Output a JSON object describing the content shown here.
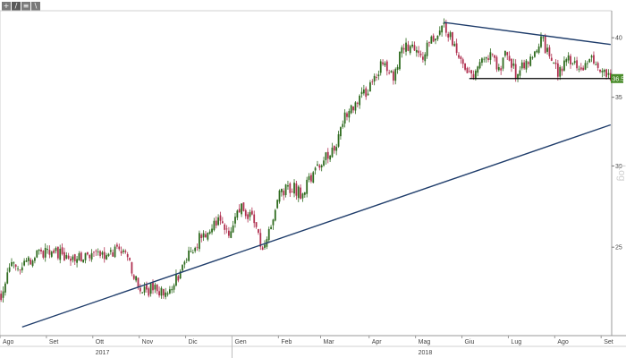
{
  "toolbar": {
    "buttons": [
      {
        "label": "+",
        "icon": "crosshair-icon"
      },
      {
        "label": "/",
        "icon": "draw-line-icon"
      },
      {
        "label": "≡",
        "icon": "layers-icon"
      },
      {
        "label": "\\",
        "icon": "trendline-icon"
      }
    ],
    "badge": "0"
  },
  "chart_data": {
    "type": "candlestick",
    "scale": "log",
    "scale_label": "Log",
    "last_price_label": "36.50",
    "yticks": [
      25,
      30,
      35,
      40
    ],
    "ylim": [
      20.5,
      42.5
    ],
    "months": [
      "Ago",
      "Set",
      "Ott",
      "Nov",
      "Dic",
      "Gen",
      "Feb",
      "Mar",
      "Apr",
      "Mag",
      "Giu",
      "Lug",
      "Ago",
      "Set"
    ],
    "years": [
      {
        "label": "2017",
        "month_index": 2
      },
      {
        "label": "2018",
        "month_index": 9
      }
    ],
    "path_points": [
      [
        0,
        22.5
      ],
      [
        4,
        23.8
      ],
      [
        12,
        24.2
      ],
      [
        22,
        24.9
      ],
      [
        33,
        24.3
      ],
      [
        45,
        24.6
      ],
      [
        55,
        24.8
      ],
      [
        61,
        24.2
      ],
      [
        66,
        22.6
      ],
      [
        73,
        22.8
      ],
      [
        78,
        22.6
      ],
      [
        85,
        23.6
      ],
      [
        92,
        25.2
      ],
      [
        102,
        26.6
      ],
      [
        108,
        26.0
      ],
      [
        114,
        27.2
      ],
      [
        120,
        26.6
      ],
      [
        124,
        24.8
      ],
      [
        128,
        26.2
      ],
      [
        132,
        28.3
      ],
      [
        138,
        28.6
      ],
      [
        142,
        28.2
      ],
      [
        148,
        29.6
      ],
      [
        155,
        30.8
      ],
      [
        158,
        31.2
      ],
      [
        162,
        33.4
      ],
      [
        170,
        34.8
      ],
      [
        176,
        36.2
      ],
      [
        181,
        37.8
      ],
      [
        186,
        36.4
      ],
      [
        190,
        38.9
      ],
      [
        196,
        39.4
      ],
      [
        200,
        38.6
      ],
      [
        206,
        40.2
      ],
      [
        210,
        41.3
      ],
      [
        216,
        38.7
      ],
      [
        222,
        37.0
      ],
      [
        224,
        36.5
      ],
      [
        229,
        38.0
      ],
      [
        232,
        38.5
      ],
      [
        236,
        37.2
      ],
      [
        240,
        38.7
      ],
      [
        244,
        36.8
      ],
      [
        248,
        37.6
      ],
      [
        252,
        38.5
      ],
      [
        256,
        40.0
      ],
      [
        260,
        38.2
      ],
      [
        264,
        37.0
      ],
      [
        268,
        38.2
      ],
      [
        272,
        37.5
      ],
      [
        276,
        37.2
      ],
      [
        280,
        38.4
      ],
      [
        284,
        37.0
      ],
      [
        289,
        36.5
      ]
    ],
    "trendlines": [
      {
        "name": "rising-support",
        "from": [
          10,
          20.9
        ],
        "to": [
          289,
          32.9
        ],
        "color": "#1f3d6b"
      },
      {
        "name": "falling-resistance",
        "from": [
          210,
          41.4
        ],
        "to": [
          289,
          39.4
        ],
        "color": "#1f3d6b"
      },
      {
        "name": "horizontal-support",
        "from": [
          222,
          36.5
        ],
        "to": [
          289,
          36.5
        ],
        "color": "#000000"
      }
    ],
    "colors": {
      "up": "#2e6b1e",
      "down": "#b03050",
      "last_badge": "#4a8c2a"
    }
  }
}
